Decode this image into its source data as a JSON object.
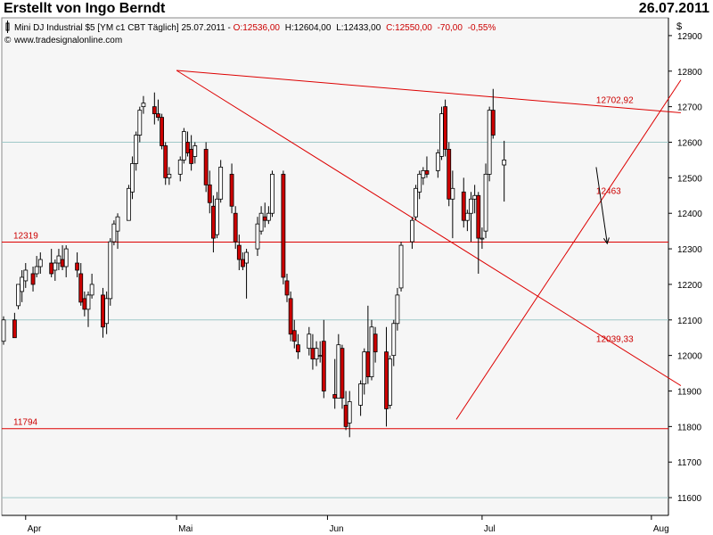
{
  "header": {
    "title": "Erstellt von Ingo Berndt",
    "date": "26.07.2011",
    "currency": "$"
  },
  "info": {
    "instrument": "Mini DJ Industrial $5 [YM c1 CBT  Täglich] 25.07.2011 - ",
    "open": "O:12536,00",
    "high": "H:12604,00",
    "low": "L:12433,00",
    "close": "C:12550,00",
    "change": "-70,00",
    "change_pct": "-0,55%",
    "website": "www.tradesignalonline.com"
  },
  "colors": {
    "up": "#ffffff",
    "down": "#cc0000",
    "line": "#dd0000",
    "grid": "#9fc8c8",
    "plot_bg": "#f6f6f6"
  },
  "chart_data": {
    "type": "candlestick",
    "ylim": [
      11550,
      12950
    ],
    "y_ticks": [
      11600,
      11700,
      11800,
      11900,
      12000,
      12100,
      12200,
      12300,
      12400,
      12500,
      12600,
      12700,
      12800,
      12900
    ],
    "grid_levels": [
      11600,
      12100,
      12600
    ],
    "x_labels": [
      {
        "label": "Apr",
        "index": 6
      },
      {
        "label": "Mai",
        "index": 47
      },
      {
        "label": "Jun",
        "index": 88
      },
      {
        "label": "Jul",
        "index": 130
      },
      {
        "label": "Aug",
        "index": 176
      }
    ],
    "bar_count": 185,
    "candles": [
      [
        0,
        12040,
        12110,
        12030,
        12100
      ],
      [
        3,
        12100,
        12120,
        12050,
        12050
      ],
      [
        4,
        12140,
        12200,
        12130,
        12200
      ],
      [
        5,
        12180,
        12240,
        12150,
        12220
      ],
      [
        6,
        12210,
        12260,
        12190,
        12240
      ],
      [
        8,
        12230,
        12250,
        12180,
        12200
      ],
      [
        9,
        12230,
        12280,
        12220,
        12250
      ],
      [
        10,
        12250,
        12290,
        12230,
        12270
      ],
      [
        13,
        12260,
        12300,
        12220,
        12230
      ],
      [
        14,
        12240,
        12270,
        12210,
        12260
      ],
      [
        15,
        12260,
        12300,
        12240,
        12280
      ],
      [
        16,
        12270,
        12310,
        12240,
        12250
      ],
      [
        17,
        12250,
        12310,
        12220,
        12300
      ],
      [
        20,
        12260,
        12290,
        12220,
        12240
      ],
      [
        21,
        12230,
        12260,
        12140,
        12150
      ],
      [
        22,
        12160,
        12180,
        12110,
        12130
      ],
      [
        23,
        12130,
        12180,
        12080,
        12170
      ],
      [
        24,
        12170,
        12230,
        12160,
        12200
      ],
      [
        27,
        12170,
        12190,
        12050,
        12080
      ],
      [
        28,
        12090,
        12180,
        12060,
        12160
      ],
      [
        29,
        12160,
        12330,
        12140,
        12320
      ],
      [
        30,
        12320,
        12380,
        12310,
        12370
      ],
      [
        31,
        12350,
        12400,
        12300,
        12390
      ],
      [
        34,
        12380,
        12480,
        12380,
        12470
      ],
      [
        35,
        12460,
        12560,
        12440,
        12540
      ],
      [
        36,
        12540,
        12630,
        12520,
        12620
      ],
      [
        37,
        12620,
        12700,
        12600,
        12690
      ],
      [
        38,
        12700,
        12730,
        12680,
        12710
      ],
      [
        41,
        12700,
        12740,
        12650,
        12680
      ],
      [
        42,
        12680,
        12720,
        12660,
        12670
      ],
      [
        43,
        12670,
        12680,
        12580,
        12590
      ],
      [
        44,
        12590,
        12600,
        12480,
        12500
      ],
      [
        45,
        12500,
        12530,
        12480,
        12510
      ],
      [
        48,
        12510,
        12560,
        12490,
        12550
      ],
      [
        49,
        12550,
        12640,
        12540,
        12630
      ],
      [
        50,
        12600,
        12630,
        12560,
        12570
      ],
      [
        51,
        12580,
        12620,
        12520,
        12540
      ],
      [
        52,
        12560,
        12600,
        12540,
        12590
      ],
      [
        55,
        12580,
        12600,
        12460,
        12480
      ],
      [
        56,
        12480,
        12520,
        12400,
        12430
      ],
      [
        57,
        12420,
        12450,
        12290,
        12330
      ],
      [
        58,
        12340,
        12460,
        12330,
        12440
      ],
      [
        59,
        12440,
        12550,
        12430,
        12530
      ],
      [
        62,
        12510,
        12540,
        12400,
        12420
      ],
      [
        63,
        12400,
        12420,
        12300,
        12320
      ],
      [
        64,
        12310,
        12340,
        12240,
        12270
      ],
      [
        65,
        12270,
        12290,
        12240,
        12250
      ],
      [
        66,
        12260,
        12300,
        12160,
        12290
      ],
      [
        69,
        12300,
        12390,
        12280,
        12370
      ],
      [
        70,
        12350,
        12420,
        12340,
        12400
      ],
      [
        71,
        12390,
        12430,
        12360,
        12380
      ],
      [
        72,
        12380,
        12420,
        12370,
        12400
      ],
      [
        73,
        12400,
        12520,
        12390,
        12510
      ],
      [
        76,
        12510,
        12520,
        12200,
        12220
      ],
      [
        77,
        12210,
        12230,
        12150,
        12170
      ],
      [
        78,
        12160,
        12180,
        12040,
        12060
      ],
      [
        79,
        12070,
        12100,
        12020,
        12040
      ],
      [
        80,
        12030,
        12060,
        11990,
        12010
      ],
      [
        83,
        12020,
        12080,
        12000,
        12060
      ],
      [
        84,
        12020,
        12060,
        11960,
        11990
      ],
      [
        85,
        11990,
        12040,
        11970,
        12020
      ],
      [
        86,
        12000,
        12040,
        11980,
        12000
      ],
      [
        87,
        12040,
        12100,
        11880,
        11900
      ],
      [
        90,
        11890,
        11990,
        11850,
        11880
      ],
      [
        91,
        11880,
        12060,
        11880,
        12030
      ],
      [
        92,
        12020,
        12030,
        11850,
        11880
      ],
      [
        93,
        11860,
        11900,
        11790,
        11800
      ],
      [
        94,
        11810,
        11900,
        11770,
        11870
      ],
      [
        97,
        11860,
        11930,
        11830,
        11920
      ],
      [
        98,
        11920,
        12020,
        11890,
        12010
      ],
      [
        99,
        12010,
        12140,
        11920,
        11940
      ],
      [
        100,
        11940,
        12100,
        11930,
        12080
      ],
      [
        101,
        12060,
        12080,
        11980,
        12010
      ],
      [
        104,
        12010,
        12080,
        11800,
        11850
      ],
      [
        105,
        11860,
        12000,
        11850,
        11990
      ],
      [
        106,
        12000,
        12100,
        11970,
        12090
      ],
      [
        107,
        12090,
        12190,
        12070,
        12170
      ],
      [
        108,
        12190,
        12320,
        12180,
        12310
      ],
      [
        111,
        12320,
        12390,
        12300,
        12380
      ],
      [
        112,
        12390,
        12480,
        12380,
        12470
      ],
      [
        113,
        12460,
        12520,
        12440,
        12510
      ],
      [
        114,
        12500,
        12530,
        12480,
        12520
      ],
      [
        115,
        12520,
        12560,
        12500,
        12510
      ],
      [
        118,
        12520,
        12580,
        12500,
        12570
      ],
      [
        119,
        12560,
        12700,
        12550,
        12680
      ],
      [
        120,
        12700,
        12720,
        12560,
        12580
      ],
      [
        121,
        12580,
        12600,
        12420,
        12440
      ],
      [
        122,
        12440,
        12520,
        12330,
        12470
      ],
      [
        125,
        12460,
        12500,
        12360,
        12380
      ],
      [
        126,
        12380,
        12410,
        12350,
        12400
      ],
      [
        127,
        12400,
        12460,
        12320,
        12440
      ],
      [
        128,
        12440,
        12480,
        12400,
        12450
      ],
      [
        129,
        12450,
        12460,
        12230,
        12330
      ],
      [
        130,
        12330,
        12360,
        12300,
        12330
      ],
      [
        131,
        12350,
        12540,
        12330,
        12510
      ],
      [
        132,
        12510,
        12700,
        12490,
        12690
      ],
      [
        133,
        12690,
        12750,
        12610,
        12620
      ],
      [
        136,
        12536,
        12604,
        12433,
        12550
      ]
    ],
    "lines": [
      {
        "from": [
          47,
          12802
        ],
        "to": [
          184,
          12683
        ]
      },
      {
        "from": [
          47,
          12802
        ],
        "to": [
          184,
          11915
        ]
      },
      {
        "from": [
          123,
          11820
        ],
        "to": [
          184,
          12775
        ]
      }
    ],
    "horizontal_lines": [
      {
        "value": 12319,
        "label": "12319"
      },
      {
        "value": 11794,
        "label": "11794"
      }
    ],
    "annotations": [
      {
        "label": "12702,92",
        "index": 161,
        "value": 12710
      },
      {
        "label": "12463",
        "index": 161,
        "value": 12455
      },
      {
        "label": "12039,33",
        "index": 161,
        "value": 12038
      }
    ],
    "arrow": {
      "from": [
        161,
        12530
      ],
      "to": [
        164,
        12315
      ]
    }
  }
}
